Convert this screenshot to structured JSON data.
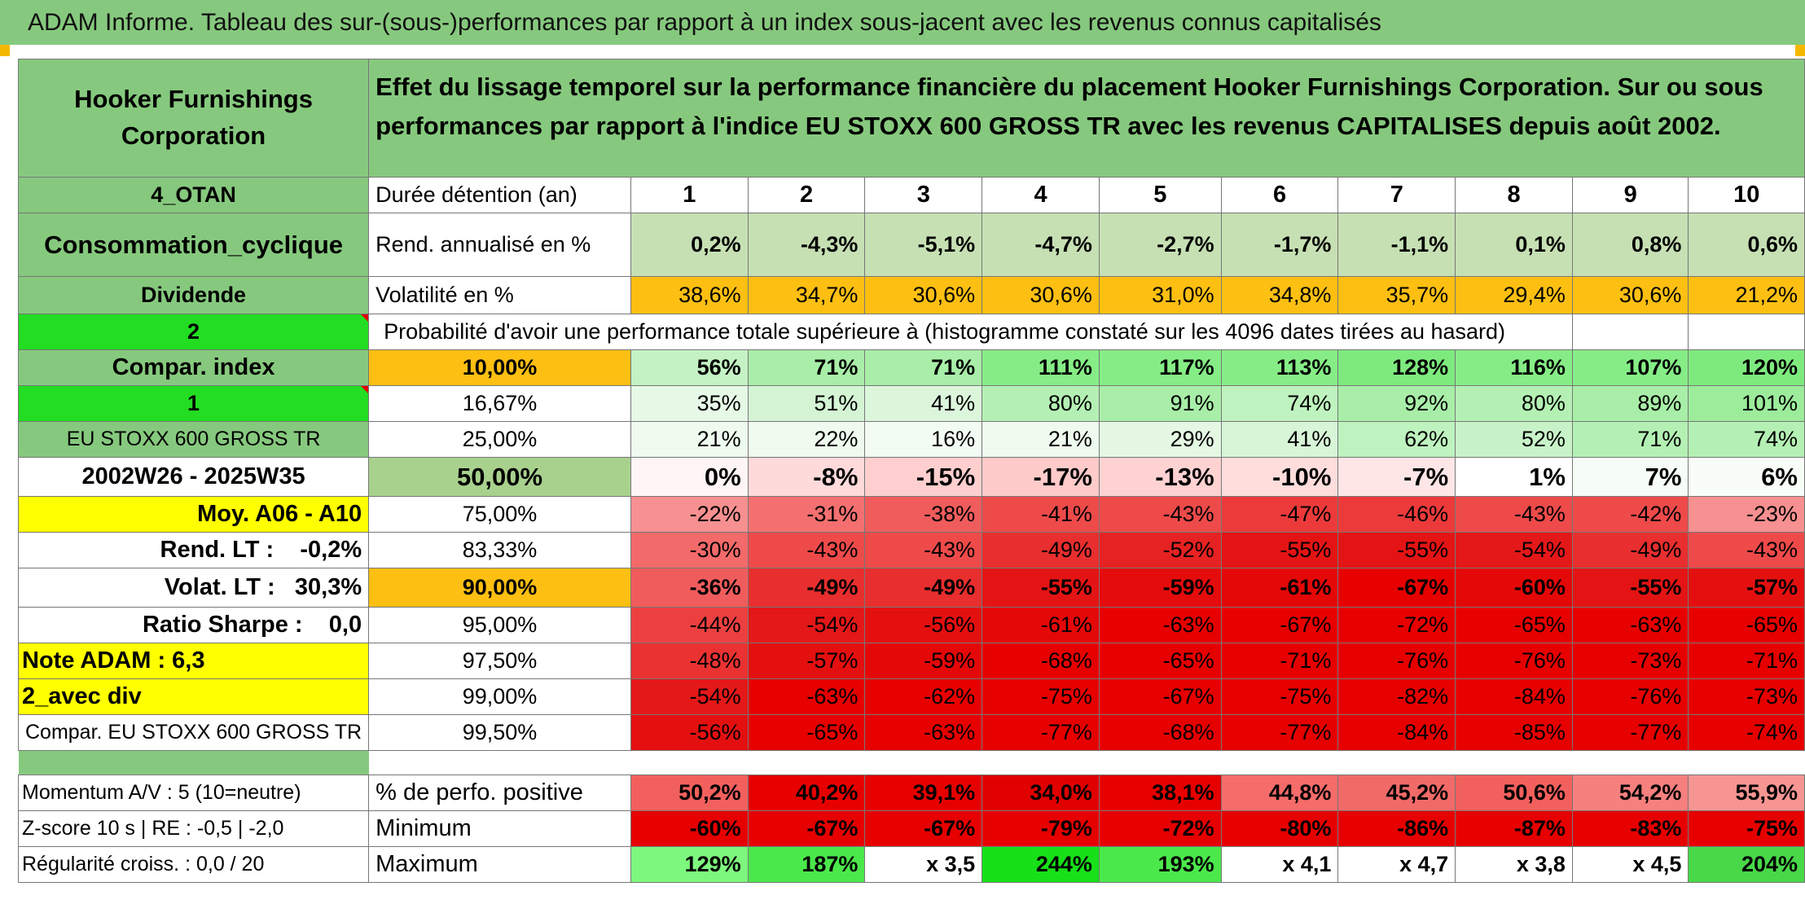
{
  "title": "ADAM Informe. Tableau des sur-(sous-)performances par rapport à un index sous-jacent avec les revenus connus capitalisés",
  "company": "Hooker Furnishings Corporation",
  "description": "Effet du lissage temporel sur la performance financière du placement Hooker Furnishings Corporation. Sur ou sous performances par rapport à l'indice EU STOXX 600 GROSS TR avec les revenus CAPITALISES depuis août 2002.",
  "left": {
    "otan": "4_OTAN",
    "sector": "Consommation_cyclique",
    "dividend": "Dividende",
    "n2": "2",
    "compar": "Compar. index",
    "n1": "1",
    "index_name": "EU STOXX 600 GROSS TR",
    "period": "2002W26 - 2025W35",
    "moy": "Moy. A06 - A10",
    "rend_lt": "Rend. LT :    -0,2%",
    "volat_lt": "Volat. LT :   30,3%",
    "sharpe": "Ratio Sharpe :    0,0",
    "note": "Note ADAM : 6,3",
    "avec_div": "2_avec div",
    "compar_index": "Compar. EU STOXX 600 GROSS TR",
    "momentum": "Momentum A/V : 5 (10=neutre)",
    "zscore": "Z-score 10 s | RE : -0,5 | -2,0",
    "regularite": "Régularité croiss. : 0,0 / 20"
  },
  "labels": {
    "duree": "Durée détention (an)",
    "rend": "Rend. annualisé en %",
    "vol": "Volatilité en %",
    "proba": "Probabilité d'avoir une performance totale supérieure à (histogramme constaté sur les 4096 dates tirées au hasard)",
    "pos": "% de perfo. positive",
    "min": "Minimum",
    "max": "Maximum"
  },
  "years": [
    "1",
    "2",
    "3",
    "4",
    "5",
    "6",
    "7",
    "8",
    "9",
    "10"
  ],
  "rend": [
    "0,2%",
    "-4,3%",
    "-5,1%",
    "-4,7%",
    "-2,7%",
    "-1,7%",
    "-1,1%",
    "0,1%",
    "0,8%",
    "0,6%"
  ],
  "vol": [
    "38,6%",
    "34,7%",
    "30,6%",
    "30,6%",
    "31,0%",
    "34,8%",
    "35,7%",
    "29,4%",
    "30,6%",
    "21,2%"
  ],
  "proba_rows": [
    {
      "pct": "10,00%",
      "vals": [
        "56%",
        "71%",
        "71%",
        "111%",
        "117%",
        "113%",
        "128%",
        "116%",
        "107%",
        "120%"
      ]
    },
    {
      "pct": "16,67%",
      "vals": [
        "35%",
        "51%",
        "41%",
        "80%",
        "91%",
        "74%",
        "92%",
        "80%",
        "89%",
        "101%"
      ]
    },
    {
      "pct": "25,00%",
      "vals": [
        "21%",
        "22%",
        "16%",
        "21%",
        "29%",
        "41%",
        "62%",
        "52%",
        "71%",
        "74%"
      ]
    },
    {
      "pct": "50,00%",
      "vals": [
        "0%",
        "-8%",
        "-15%",
        "-17%",
        "-13%",
        "-10%",
        "-7%",
        "1%",
        "7%",
        "6%"
      ]
    },
    {
      "pct": "75,00%",
      "vals": [
        "-22%",
        "-31%",
        "-38%",
        "-41%",
        "-43%",
        "-47%",
        "-46%",
        "-43%",
        "-42%",
        "-23%"
      ]
    },
    {
      "pct": "83,33%",
      "vals": [
        "-30%",
        "-43%",
        "-43%",
        "-49%",
        "-52%",
        "-55%",
        "-55%",
        "-54%",
        "-49%",
        "-43%"
      ]
    },
    {
      "pct": "90,00%",
      "vals": [
        "-36%",
        "-49%",
        "-49%",
        "-55%",
        "-59%",
        "-61%",
        "-67%",
        "-60%",
        "-55%",
        "-57%"
      ]
    },
    {
      "pct": "95,00%",
      "vals": [
        "-44%",
        "-54%",
        "-56%",
        "-61%",
        "-63%",
        "-67%",
        "-72%",
        "-65%",
        "-63%",
        "-65%"
      ]
    },
    {
      "pct": "97,50%",
      "vals": [
        "-48%",
        "-57%",
        "-59%",
        "-68%",
        "-65%",
        "-71%",
        "-76%",
        "-76%",
        "-73%",
        "-71%"
      ]
    },
    {
      "pct": "99,00%",
      "vals": [
        "-54%",
        "-63%",
        "-62%",
        "-75%",
        "-67%",
        "-75%",
        "-82%",
        "-84%",
        "-76%",
        "-73%"
      ]
    },
    {
      "pct": "99,50%",
      "vals": [
        "-56%",
        "-65%",
        "-63%",
        "-77%",
        "-68%",
        "-77%",
        "-84%",
        "-85%",
        "-77%",
        "-74%"
      ]
    }
  ],
  "pos": [
    "50,2%",
    "40,2%",
    "39,1%",
    "34,0%",
    "38,1%",
    "44,8%",
    "45,2%",
    "50,6%",
    "54,2%",
    "55,9%"
  ],
  "min": [
    "-60%",
    "-67%",
    "-67%",
    "-79%",
    "-72%",
    "-80%",
    "-86%",
    "-87%",
    "-83%",
    "-75%"
  ],
  "max": [
    "129%",
    "187%",
    "x 3,5",
    "244%",
    "193%",
    "x 4,1",
    "x 4,7",
    "x 3,8",
    "x 4,5",
    "204%"
  ],
  "colors": {
    "green_label": "#86c97e",
    "bright_green": "#22dd22",
    "orange": "#fdbf12",
    "yellow": "#ffff00",
    "red_text": "#d61f1f",
    "rend_fill": "#c6e0b4",
    "vol_fill": "#fdbf12",
    "pos_fill": [
      "#f2605d",
      "#e60000",
      "#e60000",
      "#e00000",
      "#e60000",
      "#f56c6a",
      "#f06a68",
      "#f2605d",
      "#f5807e",
      "#f79593"
    ],
    "min_fill": [
      "#e60000",
      "#e60000",
      "#e60000",
      "#e60000",
      "#e60000",
      "#e60000",
      "#e60000",
      "#e60000",
      "#e60000",
      "#e60000"
    ],
    "max_fill": [
      "#7ef77e",
      "#4be84b",
      "#ffffff",
      "#18e018",
      "#4be84b",
      "#ffffff",
      "#ffffff",
      "#ffffff",
      "#ffffff",
      "#48d848"
    ],
    "proba_fill": [
      [
        "#c4f2c4",
        "#a8eea8",
        "#a8eea8",
        "#86ed86",
        "#86ed86",
        "#86ed86",
        "#7eea7e",
        "#86ed86",
        "#86ed86",
        "#7eea7e"
      ],
      [
        "#e6f8e6",
        "#d4f4d4",
        "#dcf6dc",
        "#b4f0b4",
        "#a8eea8",
        "#bef2be",
        "#a8eea8",
        "#b4f0b4",
        "#a8eea8",
        "#9cec9c"
      ],
      [
        "#eefbee",
        "#eefbee",
        "#f2fcf2",
        "#eefbee",
        "#e4f8e4",
        "#d8f5d8",
        "#bef2be",
        "#c8f3c8",
        "#b4f0b4",
        "#b4f0b4"
      ],
      [
        "#fff5f5",
        "#ffdada",
        "#ffcfcf",
        "#ffcaca",
        "#ffd2d2",
        "#ffdddd",
        "#ffe6e6",
        "#ffffff",
        "#f6fdf6",
        "#f8fdf8"
      ],
      [
        "#f79090",
        "#f47070",
        "#f05c5c",
        "#ee4a4a",
        "#ee4a4a",
        "#ec3a3a",
        "#ec3a3a",
        "#ee4a4a",
        "#ee4a4a",
        "#f79090"
      ],
      [
        "#f36a6a",
        "#ee4a4a",
        "#ee4a4a",
        "#e82e2e",
        "#e62222",
        "#e41414",
        "#e41414",
        "#e41818",
        "#e82e2e",
        "#ee4a4a"
      ],
      [
        "#f05c5c",
        "#e82e2e",
        "#e82e2e",
        "#e41414",
        "#e40c0c",
        "#e40808",
        "#e60000",
        "#e40808",
        "#e41414",
        "#e41010"
      ],
      [
        "#ec4040",
        "#e41818",
        "#e41010",
        "#e40808",
        "#e60000",
        "#e60000",
        "#e60000",
        "#e60000",
        "#e60000",
        "#e60000"
      ],
      [
        "#ea3232",
        "#e41010",
        "#e40808",
        "#e60000",
        "#e60000",
        "#e60000",
        "#e60000",
        "#e60000",
        "#e60000",
        "#e60000"
      ],
      [
        "#e41818",
        "#e60000",
        "#e60000",
        "#e60000",
        "#e60000",
        "#e60000",
        "#e60000",
        "#e60000",
        "#e60000",
        "#e60000"
      ],
      [
        "#e41010",
        "#e60000",
        "#e60000",
        "#e60000",
        "#e60000",
        "#e60000",
        "#e60000",
        "#e60000",
        "#e60000",
        "#e60000"
      ]
    ]
  }
}
